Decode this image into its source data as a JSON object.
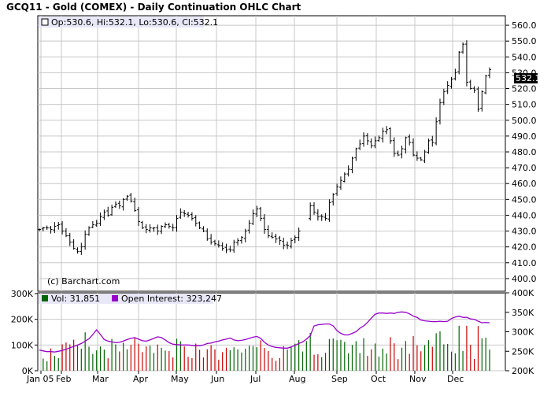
{
  "title": "GCQ11 - Gold (COMEX) - Daily Continuation OHLC Chart",
  "legend_price": "Op:530.6, Hi:532.1, Lo:530.6, Cl:532.1",
  "last_price_label": "532.1",
  "copyright": "(c) Barchart.com",
  "legend_volume": "Vol: 31,851",
  "legend_open_interest": "Open Interest: 323,247",
  "colors": {
    "price_bar": "#000000",
    "volume_up": "#006600",
    "volume_down": "#cc0000",
    "open_interest": "#9900cc",
    "grid": "#c8c8c8",
    "legend_bg": "#e8e8f8"
  },
  "chart_data": [
    {
      "type": "ohlc",
      "title": "GCQ11 - Gold (COMEX) - Daily Continuation OHLC Chart",
      "ylim": [
        392,
        566
      ],
      "y_ticks": [
        "560.0",
        "550.0",
        "540.0",
        "530.0",
        "520.0",
        "510.0",
        "500.0",
        "490.0",
        "480.0",
        "470.0",
        "460.0",
        "450.0",
        "440.0",
        "430.0",
        "420.0",
        "410.0",
        "400.0"
      ],
      "grid": true,
      "x_tick_labels": [
        "Jan 05",
        "Feb",
        "Mar",
        "Apr",
        "May",
        "Jun",
        "Jul",
        "Aug",
        "Sep",
        "Oct",
        "Nov",
        "Dec"
      ],
      "last": {
        "open": 530.6,
        "high": 532.1,
        "low": 530.6,
        "close": 532.1
      },
      "close_series": [
        431,
        432,
        432,
        431,
        433,
        434,
        430,
        427,
        423,
        419,
        417,
        420,
        428,
        432,
        434,
        435,
        439,
        442,
        440,
        445,
        447,
        446,
        450,
        452,
        449,
        443,
        436,
        432,
        431,
        432,
        432,
        430,
        433,
        434,
        433,
        432,
        438,
        442,
        441,
        440,
        438,
        435,
        432,
        430,
        425,
        423,
        422,
        421,
        419,
        418,
        418,
        423,
        424,
        426,
        430,
        435,
        441,
        444,
        438,
        431,
        427,
        426,
        425,
        424,
        421,
        421,
        424,
        426,
        430,
        432,
        438,
        446,
        442,
        439,
        439,
        438,
        448,
        453,
        458,
        462,
        466,
        469,
        476,
        482,
        485,
        490,
        487,
        484,
        487,
        489,
        493,
        494,
        487,
        479,
        478,
        482,
        489,
        486,
        478,
        476,
        475,
        480,
        487,
        486,
        499,
        511,
        518,
        522,
        526,
        530,
        543,
        548,
        524,
        520,
        519,
        507,
        518,
        528,
        532
      ]
    },
    {
      "type": "bar+line",
      "series": [
        {
          "name": "Vol",
          "last": "31,851",
          "axis": "left",
          "ylim": [
            0,
            300000
          ],
          "y_ticks": [
            "300K",
            "200K",
            "100K",
            "0K"
          ]
        },
        {
          "name": "Open Interest",
          "last": "323,247",
          "axis": "right",
          "ylim": [
            200000,
            400000
          ],
          "y_ticks": [
            "400K",
            "350K",
            "300K",
            "250K",
            "200K"
          ]
        }
      ],
      "x_tick_labels": [
        "Jan 05",
        "Feb",
        "Mar",
        "Apr",
        "May",
        "Jun",
        "Jul",
        "Aug",
        "Sep",
        "Oct",
        "Nov",
        "Dec"
      ],
      "oi_series": [
        253,
        251,
        249,
        249,
        248,
        250,
        252,
        255,
        259,
        262,
        266,
        270,
        276,
        282,
        293,
        305,
        293,
        280,
        276,
        274,
        272,
        273,
        276,
        280,
        283,
        285,
        281,
        277,
        276,
        279,
        283,
        287,
        285,
        279,
        272,
        268,
        267,
        266,
        266,
        266,
        265,
        264,
        264,
        266,
        270,
        271,
        274,
        276,
        279,
        281,
        284,
        279,
        277,
        278,
        280,
        283,
        286,
        288,
        283,
        273,
        266,
        262,
        260,
        259,
        258,
        258,
        261,
        265,
        270,
        274,
        281,
        290,
        315,
        318,
        319,
        320,
        320,
        315,
        303,
        296,
        292,
        292,
        296,
        300,
        309,
        315,
        324,
        335,
        345,
        348,
        348,
        347,
        348,
        347,
        350,
        351,
        350,
        346,
        340,
        337,
        330,
        328,
        327,
        326,
        326,
        327,
        326,
        327,
        334,
        338,
        340,
        337,
        337,
        333,
        332,
        327,
        323,
        324,
        323
      ]
    }
  ]
}
